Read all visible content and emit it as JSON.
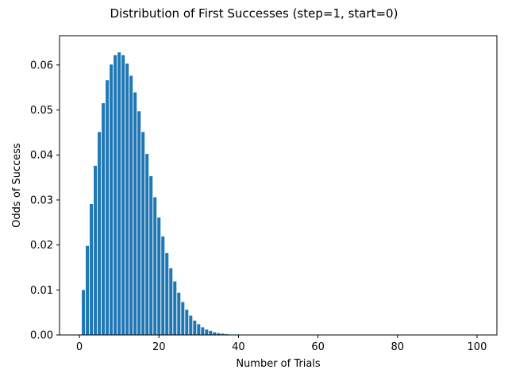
{
  "chart_data": {
    "type": "bar",
    "title": "Distribution of First Successes (step=1, start=0)",
    "xlabel": "Number of Trials",
    "ylabel": "Odds of Success",
    "xlim": [
      -5,
      105
    ],
    "ylim": [
      0,
      0.0665
    ],
    "xticks": [
      0,
      20,
      40,
      60,
      80,
      100
    ],
    "xtick_labels": [
      "0",
      "20",
      "40",
      "60",
      "80",
      "100"
    ],
    "yticks": [
      0.0,
      0.01,
      0.02,
      0.03,
      0.04,
      0.05,
      0.06
    ],
    "ytick_labels": [
      "0.00",
      "0.01",
      "0.02",
      "0.03",
      "0.04",
      "0.05",
      "0.06"
    ],
    "grid": false,
    "legend": "none",
    "bar_color": "#1f77b4",
    "x": [
      1,
      2,
      3,
      4,
      5,
      6,
      7,
      8,
      9,
      10,
      11,
      12,
      13,
      14,
      15,
      16,
      17,
      18,
      19,
      20,
      21,
      22,
      23,
      24,
      25,
      26,
      27,
      28,
      29,
      30,
      31,
      32,
      33,
      34,
      35,
      36,
      37,
      38,
      39,
      40,
      41,
      42,
      43,
      44,
      45,
      46,
      47,
      48,
      49,
      50,
      51,
      52,
      53,
      54,
      55,
      56,
      57,
      58,
      59,
      60,
      61,
      62,
      63,
      64,
      65,
      66,
      67,
      68,
      69,
      70,
      71,
      72,
      73,
      74,
      75,
      76,
      77,
      78,
      79,
      80,
      81,
      82,
      83,
      84,
      85,
      86,
      87,
      88,
      89,
      90,
      91,
      92,
      93,
      94,
      95,
      96,
      97,
      98,
      99,
      100
    ],
    "values": [
      0.01,
      0.0198,
      0.0291,
      0.0376,
      0.0451,
      0.0515,
      0.0566,
      0.0601,
      0.0622,
      0.0628,
      0.0622,
      0.0603,
      0.0576,
      0.0539,
      0.0497,
      0.0451,
      0.0402,
      0.0353,
      0.0306,
      0.0261,
      0.0219,
      0.0182,
      0.0148,
      0.0119,
      0.0094,
      0.0073,
      0.0056,
      0.0043,
      0.0032,
      0.0024,
      0.0017,
      0.0012,
      0.0009,
      0.0006,
      0.0004,
      0.0003,
      0.0002,
      0.0001,
      0.0001,
      0.0001,
      0,
      0,
      0,
      0,
      0,
      0,
      0,
      0,
      0,
      0,
      0,
      0,
      0,
      0,
      0,
      0,
      0,
      0,
      0,
      0,
      0,
      0,
      0,
      0,
      0,
      0,
      0,
      0,
      0,
      0,
      0,
      0,
      0,
      0,
      0,
      0,
      0,
      0,
      0,
      0,
      0,
      0,
      0,
      0,
      0,
      0,
      0,
      0,
      0,
      0,
      0,
      0,
      0,
      0,
      0,
      0,
      0,
      0,
      0,
      0
    ]
  }
}
